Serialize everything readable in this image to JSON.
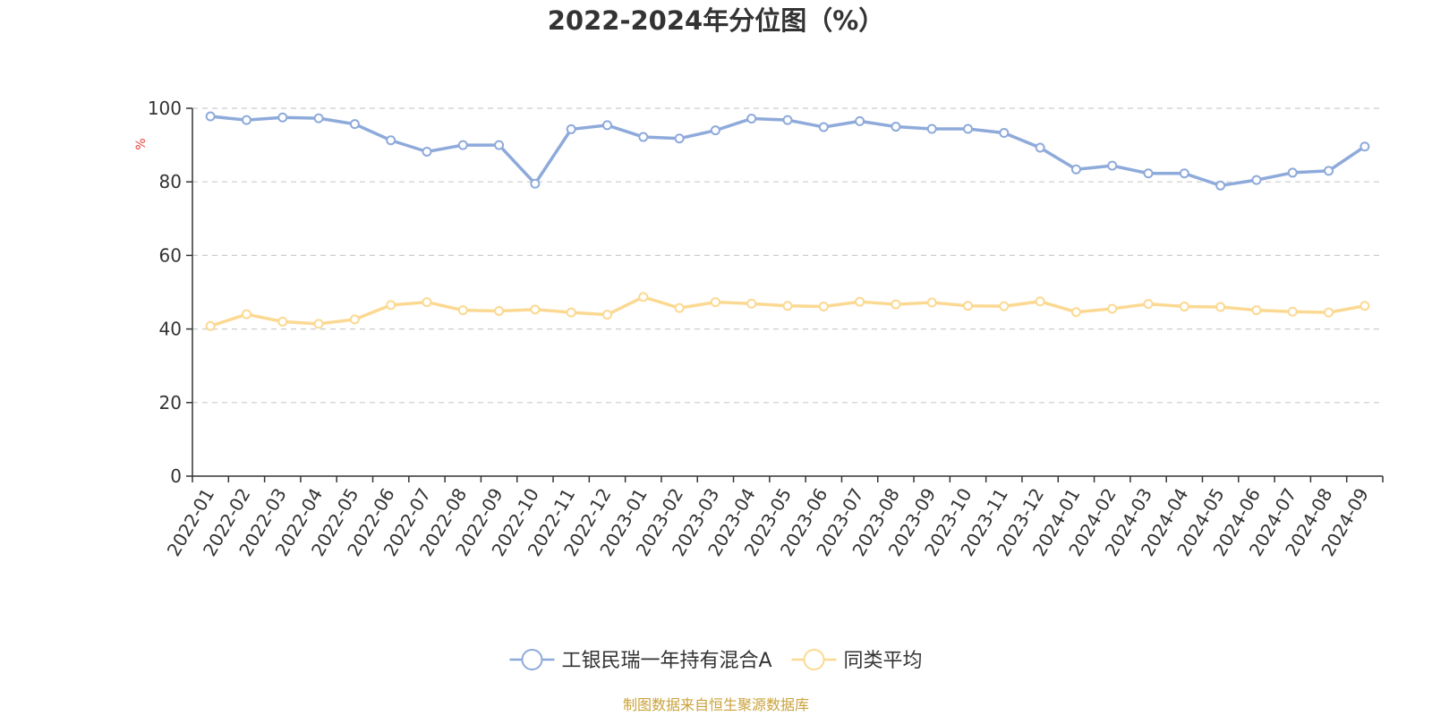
{
  "chart_data": {
    "type": "line",
    "title": "2022-2024年分位图（%）",
    "ylabel": "%",
    "xlabel": "",
    "ylim": [
      0,
      100
    ],
    "yticks": [
      0,
      20,
      40,
      60,
      80,
      100
    ],
    "grid": true,
    "legend_position": "bottom",
    "categories": [
      "2022-01",
      "2022-02",
      "2022-03",
      "2022-04",
      "2022-05",
      "2022-06",
      "2022-07",
      "2022-08",
      "2022-09",
      "2022-10",
      "2022-11",
      "2022-12",
      "2023-01",
      "2023-02",
      "2023-03",
      "2023-04",
      "2023-05",
      "2023-06",
      "2023-07",
      "2023-08",
      "2023-09",
      "2023-10",
      "2023-11",
      "2023-12",
      "2024-01",
      "2024-02",
      "2024-03",
      "2024-04",
      "2024-05",
      "2024-06",
      "2024-07",
      "2024-08",
      "2024-09"
    ],
    "series": [
      {
        "name": "工银民瑞一年持有混合A",
        "color": "#8eaadb",
        "values": [
          97.8,
          96.8,
          97.5,
          97.3,
          95.7,
          91.3,
          88.2,
          90.0,
          90.0,
          79.5,
          94.3,
          95.4,
          92.2,
          91.8,
          94.0,
          97.2,
          96.8,
          94.9,
          96.5,
          95.0,
          94.4,
          94.4,
          93.3,
          89.3,
          83.4,
          84.4,
          82.3,
          82.3,
          79.0,
          80.5,
          82.5,
          83.0,
          89.6
        ]
      },
      {
        "name": "同类平均",
        "color": "#fbd992",
        "values": [
          40.8,
          44.0,
          42.0,
          41.4,
          42.6,
          46.5,
          47.3,
          45.1,
          44.9,
          45.3,
          44.5,
          43.9,
          48.7,
          45.7,
          47.3,
          46.9,
          46.3,
          46.1,
          47.4,
          46.7,
          47.2,
          46.3,
          46.2,
          47.5,
          44.6,
          45.5,
          46.8,
          46.1,
          46.0,
          45.1,
          44.7,
          44.5,
          46.3
        ]
      }
    ],
    "footer": "制图数据来自恒生聚源数据库",
    "footer_color": "#c9a23a"
  }
}
